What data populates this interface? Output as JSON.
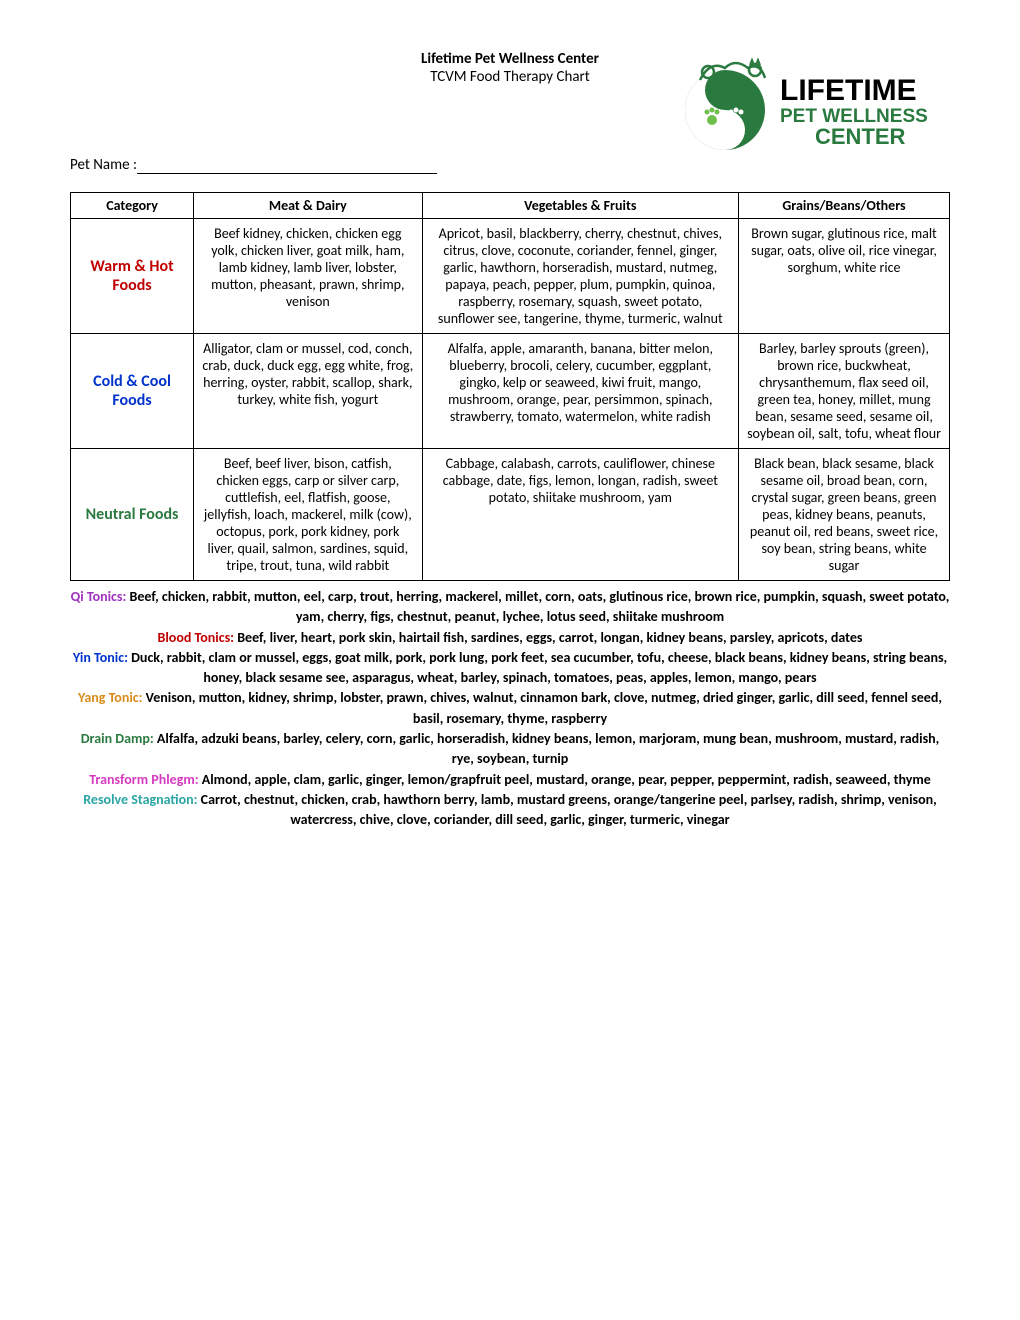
{
  "header": {
    "title": "Lifetime Pet Wellness Center",
    "subtitle": "TCVM Food Therapy Chart",
    "pet_name_label": "Pet Name :",
    "logo_text1": "LIFETIME",
    "logo_text2": "PET WELLNESS",
    "logo_text3": "CENTER",
    "logo_color_primary": "#2a7a3f",
    "logo_color_accent": "#6fbf4b"
  },
  "table": {
    "col_widths": [
      "14%",
      "26%",
      "36%",
      "24%"
    ],
    "headers": [
      "Category",
      "Meat & Dairy",
      "Vegetables & Fruits",
      "Grains/Beans/Others"
    ],
    "rows": [
      {
        "category": "Warm & Hot Foods",
        "category_color": "#c00000",
        "meat": "Beef kidney, chicken, chicken egg yolk, chicken liver, goat milk, ham, lamb kidney, lamb liver, lobster, mutton, pheasant, prawn, shrimp, venison",
        "veg": "Apricot, basil, blackberry, cherry, chestnut, chives, citrus, clove, coconute, coriander, fennel, ginger, garlic, hawthorn, horseradish, mustard, nutmeg, papaya, peach, pepper, plum, pumpkin, quinoa, raspberry, rosemary, squash, sweet potato, sunflower see, tangerine, thyme, turmeric, walnut",
        "grains": "Brown sugar, glutinous rice, malt sugar, oats, olive oil, rice vinegar, sorghum, white rice"
      },
      {
        "category": "Cold & Cool Foods",
        "category_color": "#0033cc",
        "meat": "Alligator, clam or mussel, cod, conch, crab, duck, duck egg, egg white, frog, herring, oyster, rabbit, scallop, shark, turkey, white fish, yogurt",
        "veg": "Alfalfa, apple, amaranth, banana, bitter melon, blueberry, brocoli, celery, cucumber, eggplant, gingko, kelp or seaweed, kiwi fruit, mango, mushroom, orange, pear, persimmon, spinach, strawberry, tomato, watermelon, white radish",
        "grains": "Barley, barley sprouts (green), brown rice, buckwheat, chrysanthemum, flax seed oil, green tea, honey, millet, mung bean, sesame seed, sesame oil, soybean oil, salt, tofu, wheat flour"
      },
      {
        "category": "Neutral Foods",
        "category_color": "#2a7a3f",
        "meat": "Beef, beef liver, bison, catfish, chicken eggs, carp or silver carp, cuttlefish, eel, flatfish, goose, jellyfish, loach, mackerel, milk (cow), octopus, pork, pork kidney, pork liver, quail, salmon, sardines, squid, tripe, trout, tuna, wild rabbit",
        "veg": "Cabbage, calabash, carrots, cauliflower, chinese cabbage, date, figs, lemon, longan, radish, sweet potato, shiitake mushroom, yam",
        "grains": "Black bean, black sesame, black sesame oil, broad bean, corn, crystal sugar, green beans, green peas, kidney beans, peanuts, peanut oil, red beans, sweet rice, soy bean, string beans, white sugar"
      }
    ]
  },
  "tonics": [
    {
      "label": "Qi Tonics:",
      "color": "#a030c0",
      "text": " Beef, chicken, rabbit, mutton, eel, carp, trout, herring, mackerel, millet, corn, oats, glutinous rice, brown rice, pumpkin, squash, sweet potato, yam, cherry, figs, chestnut, peanut, lychee, lotus seed, shiitake mushroom"
    },
    {
      "label": "Blood Tonics:",
      "color": "#c00000",
      "text": " Beef, liver, heart, pork skin, hairtail fish, sardines, eggs, carrot, longan, kidney beans, parsley, apricots, dates"
    },
    {
      "label": "Yin Tonic:",
      "color": "#0033cc",
      "text": " Duck, rabbit, clam or mussel, eggs, goat milk, pork, pork lung, pork feet, sea cucumber, tofu, cheese, black beans, kidney beans, string beans, honey, black sesame see, asparagus, wheat, barley, spinach, tomatoes, peas, apples, lemon, mango, pears"
    },
    {
      "label": "Yang Tonic:",
      "color": "#d98b1a",
      "text": " Venison, mutton, kidney, shrimp, lobster, prawn, chives, walnut, cinnamon bark, clove, nutmeg, dried ginger, garlic, dill seed, fennel seed, basil, rosemary, thyme, raspberry"
    },
    {
      "label": "Drain Damp:",
      "color": "#2a7a3f",
      "text": " Alfalfa, adzuki beans, barley, celery, corn, garlic, horseradish, kidney beans, lemon, marjoram, mung bean, mushroom, mustard, radish, rye, soybean, turnip"
    },
    {
      "label": "Transform Phlegm:",
      "color": "#d63abf",
      "text": " Almond, apple, clam, garlic, ginger, lemon/grapfruit peel, mustard, orange, pear, pepper, peppermint, radish, seaweed, thyme"
    },
    {
      "label": "Resolve Stagnation:",
      "color": "#2aa5a5",
      "text": " Carrot, chestnut, chicken, crab, hawthorn berry, lamb, mustard greens, orange/tangerine peel, parlsey, radish, shrimp, venison, watercress, chive, clove, coriander, dill seed, garlic, ginger, turmeric, vinegar"
    }
  ]
}
